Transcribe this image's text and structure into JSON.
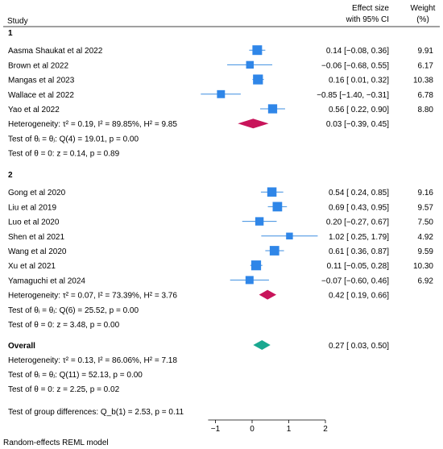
{
  "chart_data": {
    "type": "forest",
    "headers": {
      "study": "Study",
      "effect_line1": "Effect size",
      "effect_line2": "with 95% CI",
      "weight_line1": "Weight",
      "weight_line2": "(%)"
    },
    "x_axis": {
      "min": -1.2,
      "max": 2.0,
      "ticks": [
        -1,
        0,
        1,
        2
      ],
      "tick_labels": [
        "−1",
        "0",
        "1",
        "2"
      ]
    },
    "groups": [
      {
        "label": "1",
        "studies": [
          {
            "name": "Aasma Shaukat et al 2022",
            "est": 0.14,
            "lo": -0.08,
            "hi": 0.36,
            "ci_text": "0.14 [−0.08,  0.36]",
            "weight": "9.91"
          },
          {
            "name": "Brown et al 2022",
            "est": -0.06,
            "lo": -0.68,
            "hi": 0.55,
            "ci_text": "−0.06 [−0.68,  0.55]",
            "weight": "6.17"
          },
          {
            "name": "Mangas et al 2023",
            "est": 0.16,
            "lo": 0.01,
            "hi": 0.32,
            "ci_text": "0.16 [  0.01,  0.32]",
            "weight": "10.38"
          },
          {
            "name": "Wallace et al 2022",
            "est": -0.85,
            "lo": -1.4,
            "hi": -0.31,
            "ci_text": "−0.85 [−1.40, −0.31]",
            "weight": "6.78"
          },
          {
            "name": "Yao et al 2022",
            "est": 0.56,
            "lo": 0.22,
            "hi": 0.9,
            "ci_text": "0.56 [  0.22,  0.90]",
            "weight": "8.80"
          }
        ],
        "summary": {
          "label": "Heterogeneity: τ² = 0.19, I² = 89.85%, H² = 9.85",
          "est": 0.03,
          "lo": -0.39,
          "hi": 0.45,
          "ci_text": "0.03 [−0.39,  0.45]"
        },
        "test_homog": "Test of θᵢ = θⱼ: Q(4) = 19.01, p = 0.00",
        "test_zero": "Test of θ = 0: z = 0.14, p = 0.89"
      },
      {
        "label": "2",
        "studies": [
          {
            "name": "Gong et al 2020",
            "est": 0.54,
            "lo": 0.24,
            "hi": 0.85,
            "ci_text": "0.54 [  0.24,  0.85]",
            "weight": "9.16"
          },
          {
            "name": "Liu et al 2019",
            "est": 0.69,
            "lo": 0.43,
            "hi": 0.95,
            "ci_text": "0.69 [  0.43,  0.95]",
            "weight": "9.57"
          },
          {
            "name": "Luo et al 2020",
            "est": 0.2,
            "lo": -0.27,
            "hi": 0.67,
            "ci_text": "0.20 [−0.27,  0.67]",
            "weight": "7.50"
          },
          {
            "name": "Shen et al 2021",
            "est": 1.02,
            "lo": 0.25,
            "hi": 1.79,
            "ci_text": "1.02 [  0.25,  1.79]",
            "weight": "4.92"
          },
          {
            "name": "Wang et al 2020",
            "est": 0.61,
            "lo": 0.36,
            "hi": 0.87,
            "ci_text": "0.61 [  0.36,  0.87]",
            "weight": "9.59"
          },
          {
            "name": "Xu et al 2021",
            "est": 0.11,
            "lo": -0.05,
            "hi": 0.28,
            "ci_text": "0.11 [−0.05,  0.28]",
            "weight": "10.30"
          },
          {
            "name": "Yamaguchi et al 2024",
            "est": -0.07,
            "lo": -0.6,
            "hi": 0.46,
            "ci_text": "−0.07 [−0.60,  0.46]",
            "weight": "6.92"
          }
        ],
        "summary": {
          "label": "Heterogeneity: τ² = 0.07, I² = 73.39%, H² = 3.76",
          "est": 0.42,
          "lo": 0.19,
          "hi": 0.66,
          "ci_text": "0.42 [  0.19,  0.66]"
        },
        "test_homog": "Test of θᵢ = θⱼ: Q(6) = 25.52, p = 0.00",
        "test_zero": "Test of θ = 0: z = 3.48, p = 0.00"
      }
    ],
    "overall": {
      "label": "Overall",
      "est": 0.27,
      "lo": 0.03,
      "hi": 0.5,
      "ci_text": "0.27 [  0.03,  0.50]",
      "heterogeneity": "Heterogeneity: τ² = 0.13, I² = 86.06%, H² = 7.18",
      "test_homog": "Test of θᵢ = θⱼ: Q(11) = 52.13, p = 0.00",
      "test_zero": "Test of θ = 0: z = 2.25, p = 0.02"
    },
    "group_difference": "Test of group differences: Q_b(1) = 2.53, p = 0.11",
    "footnote": "Random-effects REML model",
    "colors": {
      "study_marker": "#2f86e8",
      "ci_line": "#3d8ee0",
      "group_diamond": "#c8145a",
      "overall_diamond": "#1aa890",
      "axis": "#000000"
    }
  }
}
